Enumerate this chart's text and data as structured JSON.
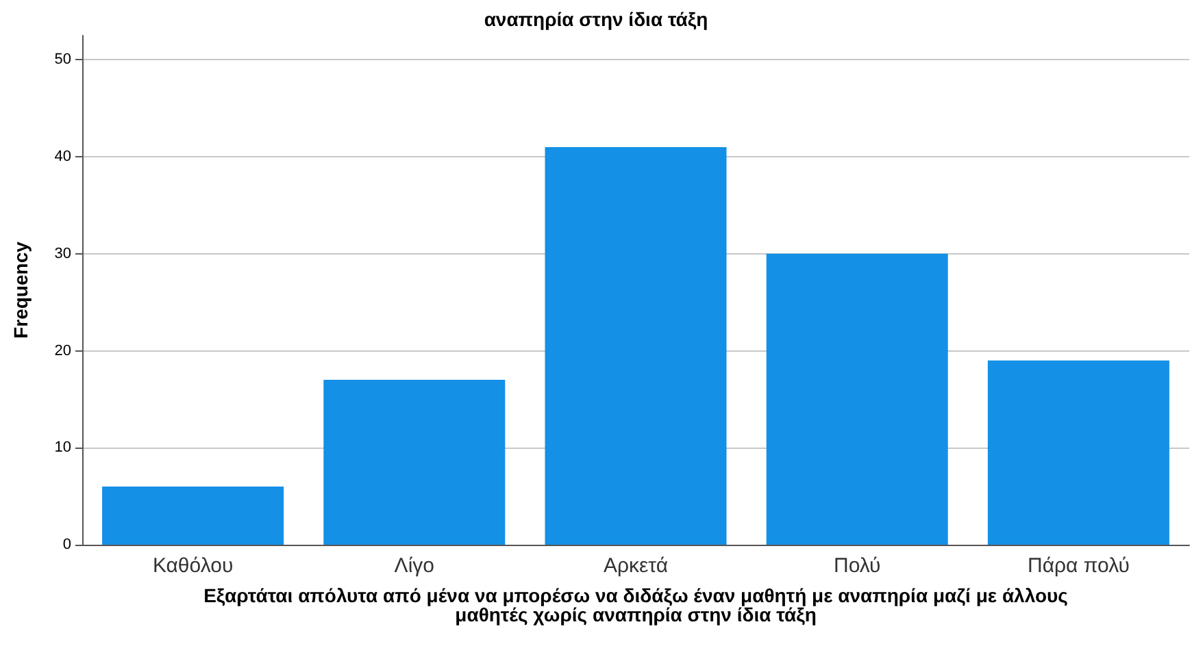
{
  "chart_data": {
    "type": "bar",
    "title": "αναπηρία στην ίδια τάξη",
    "categories": [
      "Καθόλου",
      "Λίγο",
      "Αρκετά",
      "Πολύ",
      "Πάρα πολύ"
    ],
    "values": [
      6,
      17,
      41,
      30,
      19
    ],
    "color": "#1490e6",
    "xlabel": "Εξαρτάται απόλυτα από μένα να μπορέσω να διδάξω έναν μαθητή με αναπηρία μαζί με άλλους\nμαθητές χωρίς αναπηρία στην ίδια τάξη",
    "ylabel": "Frequency",
    "ylim": [
      0,
      52.5
    ],
    "yticks": [
      0,
      10,
      20,
      30,
      40,
      50
    ],
    "grid": "y"
  }
}
